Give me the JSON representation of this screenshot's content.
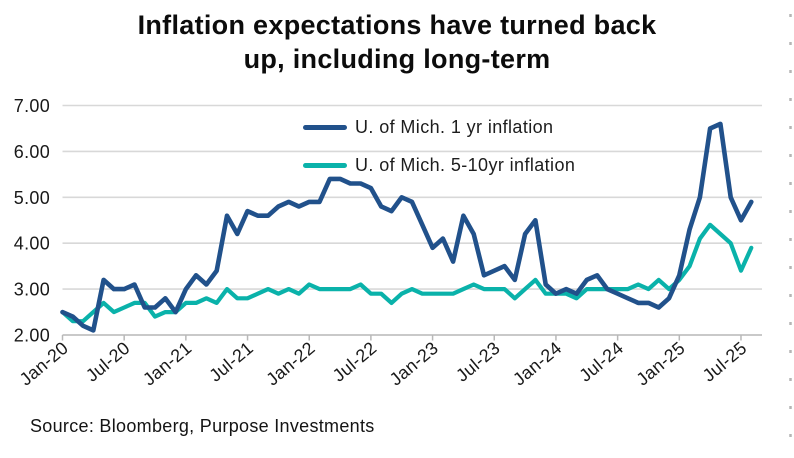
{
  "page": {
    "title_line1": "Inflation expectations have turned back",
    "title_line2": "up, including long-term",
    "source": "Source: Bloomberg, Purpose Investments"
  },
  "colors": {
    "series_1yr": "#21518b",
    "series_5_10yr": "#0ab2aa",
    "gridline": "#d8d8d8",
    "axis": "#c9c9c9",
    "tick": "#b8b8b8",
    "label_text": "#191919",
    "edge_dashes": "#b5b5b5"
  },
  "chart_data": {
    "type": "line",
    "title": "Inflation expectations have turned back up, including long-term",
    "x_start": "Jan-2020",
    "x_end": "Aug-2025",
    "x_frequency": "monthly",
    "x_tick_labels": [
      "Jan-20",
      "Jul-20",
      "Jan-21",
      "Jul-21",
      "Jan-22",
      "Jul-22",
      "Jan-23",
      "Jul-23",
      "Jan-24",
      "Jul-24",
      "Jan-25",
      "Jul-25"
    ],
    "y_tick_labels": [
      "7.00",
      "6.00",
      "5.00",
      "4.00",
      "3.00",
      "2.00"
    ],
    "ylim": [
      2.0,
      7.0
    ],
    "grid": "horizontal",
    "legend_position": "top-center",
    "series": [
      {
        "name": "U. of Mich. 1 yr inflation",
        "color": "#21518b",
        "values": [
          2.5,
          2.4,
          2.2,
          2.1,
          3.2,
          3.0,
          3.0,
          3.1,
          2.6,
          2.6,
          2.8,
          2.5,
          3.0,
          3.3,
          3.1,
          3.4,
          4.6,
          4.2,
          4.7,
          4.6,
          4.6,
          4.8,
          4.9,
          4.8,
          4.9,
          4.9,
          5.4,
          5.4,
          5.3,
          5.3,
          5.2,
          4.8,
          4.7,
          5.0,
          4.9,
          4.4,
          3.9,
          4.1,
          3.6,
          4.6,
          4.2,
          3.3,
          3.4,
          3.5,
          3.2,
          4.2,
          4.5,
          3.1,
          2.9,
          3.0,
          2.9,
          3.2,
          3.3,
          3.0,
          2.9,
          2.8,
          2.7,
          2.7,
          2.6,
          2.8,
          3.3,
          4.3,
          5.0,
          6.5,
          6.6,
          5.0,
          4.5,
          4.9
        ]
      },
      {
        "name": "U. of Mich. 5-10yr inflation",
        "color": "#0ab2aa",
        "values": [
          2.5,
          2.3,
          2.3,
          2.5,
          2.7,
          2.5,
          2.6,
          2.7,
          2.7,
          2.4,
          2.5,
          2.5,
          2.7,
          2.7,
          2.8,
          2.7,
          3.0,
          2.8,
          2.8,
          2.9,
          3.0,
          2.9,
          3.0,
          2.9,
          3.1,
          3.0,
          3.0,
          3.0,
          3.0,
          3.1,
          2.9,
          2.9,
          2.7,
          2.9,
          3.0,
          2.9,
          2.9,
          2.9,
          2.9,
          3.0,
          3.1,
          3.0,
          3.0,
          3.0,
          2.8,
          3.0,
          3.2,
          2.9,
          2.9,
          2.9,
          2.8,
          3.0,
          3.0,
          3.0,
          3.0,
          3.0,
          3.1,
          3.0,
          3.2,
          3.0,
          3.2,
          3.5,
          4.1,
          4.4,
          4.2,
          4.0,
          3.4,
          3.9
        ]
      }
    ]
  }
}
